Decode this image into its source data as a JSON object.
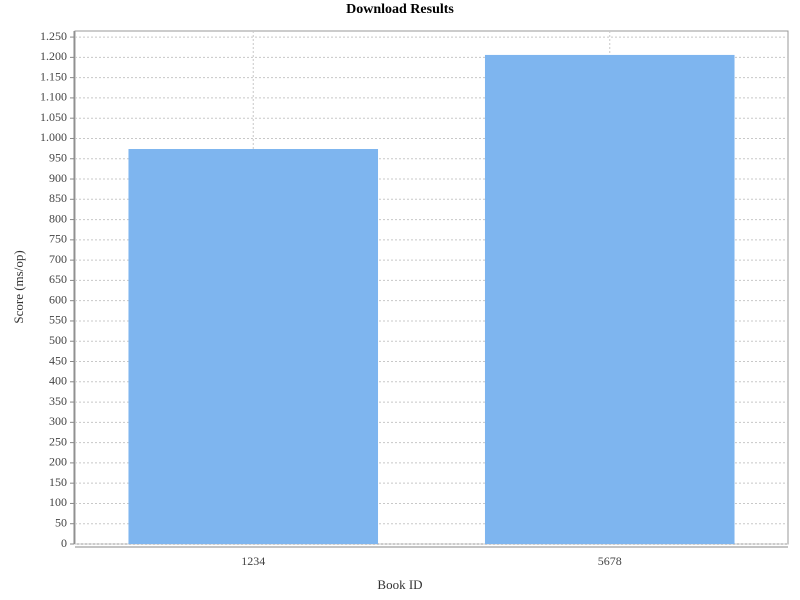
{
  "chart_data": {
    "type": "bar",
    "title": "Download Results",
    "x_label": "Book ID",
    "y_label": "Score (ms/op)",
    "categories": [
      "1234",
      "5678"
    ],
    "values": [
      974,
      1206
    ],
    "color": "#7eb5ef",
    "ylim": [
      0,
      1265
    ],
    "yticks": [
      0,
      50,
      100,
      150,
      200,
      250,
      300,
      350,
      400,
      450,
      500,
      550,
      600,
      650,
      700,
      750,
      800,
      850,
      900,
      950,
      {
        "value": 1000,
        "label": "1.000"
      },
      {
        "value": 1050,
        "label": "1.050"
      },
      {
        "value": 1100,
        "label": "1.100"
      },
      {
        "value": 1150,
        "label": "1.150"
      },
      {
        "value": 1200,
        "label": "1.200"
      },
      {
        "value": 1250,
        "label": "1.250"
      }
    ],
    "grid": true
  }
}
